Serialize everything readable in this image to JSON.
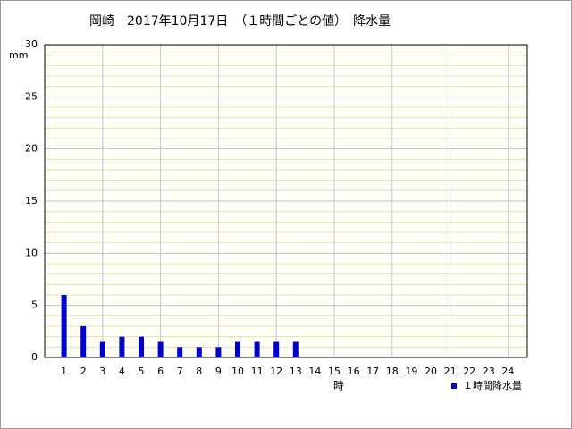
{
  "chart_data": {
    "type": "bar",
    "title": "岡崎　2017年10月17日　（１時間ごとの値）　降水量",
    "y_label": "mm",
    "x_label": "時",
    "categories": [
      "1",
      "2",
      "3",
      "4",
      "5",
      "6",
      "7",
      "8",
      "9",
      "10",
      "11",
      "12",
      "13",
      "14",
      "15",
      "16",
      "17",
      "18",
      "19",
      "20",
      "21",
      "22",
      "23",
      "24"
    ],
    "series": [
      {
        "name": "１時間降水量",
        "color": "#0000cc",
        "values": [
          6,
          3,
          1.5,
          2,
          2,
          1.5,
          1,
          1,
          1,
          1.5,
          1.5,
          1.5,
          1.5,
          null,
          null,
          null,
          null,
          null,
          null,
          null,
          null,
          null,
          null,
          null
        ]
      }
    ],
    "ylim": [
      0,
      30
    ],
    "yticks": [
      0,
      5,
      10,
      15,
      20,
      25,
      30
    ],
    "grid": true
  }
}
